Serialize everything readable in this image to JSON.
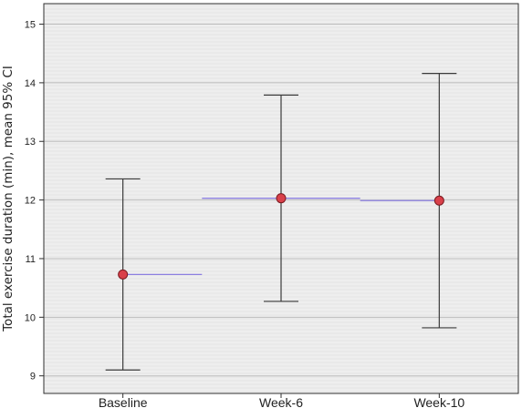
{
  "chart_data": {
    "type": "errorbar",
    "ylabel": "Total exercise duration (min), mean 95% CI",
    "xlabel": "",
    "title": "",
    "categories": [
      "Baseline",
      "Week-6",
      "Week-10"
    ],
    "mean": [
      10.73,
      12.03,
      11.99
    ],
    "ci_lower": [
      9.1,
      10.27,
      9.82
    ],
    "ci_upper": [
      12.36,
      13.79,
      14.16
    ],
    "ylim": [
      8.7,
      15.35
    ],
    "yticks": [
      "9",
      "10",
      "11",
      "12",
      "13",
      "14",
      "15"
    ],
    "grid": true,
    "colors": {
      "plot_background": "#eeeeee",
      "hatch": "#e4e4e4",
      "grid": "#bdbdbd",
      "marker_fill": "#d9404a",
      "marker_stroke": "#7a1a20",
      "error_bar": "#3a3a3a",
      "connector": "#8c7fe0",
      "frame": "#2f2f2f"
    }
  }
}
